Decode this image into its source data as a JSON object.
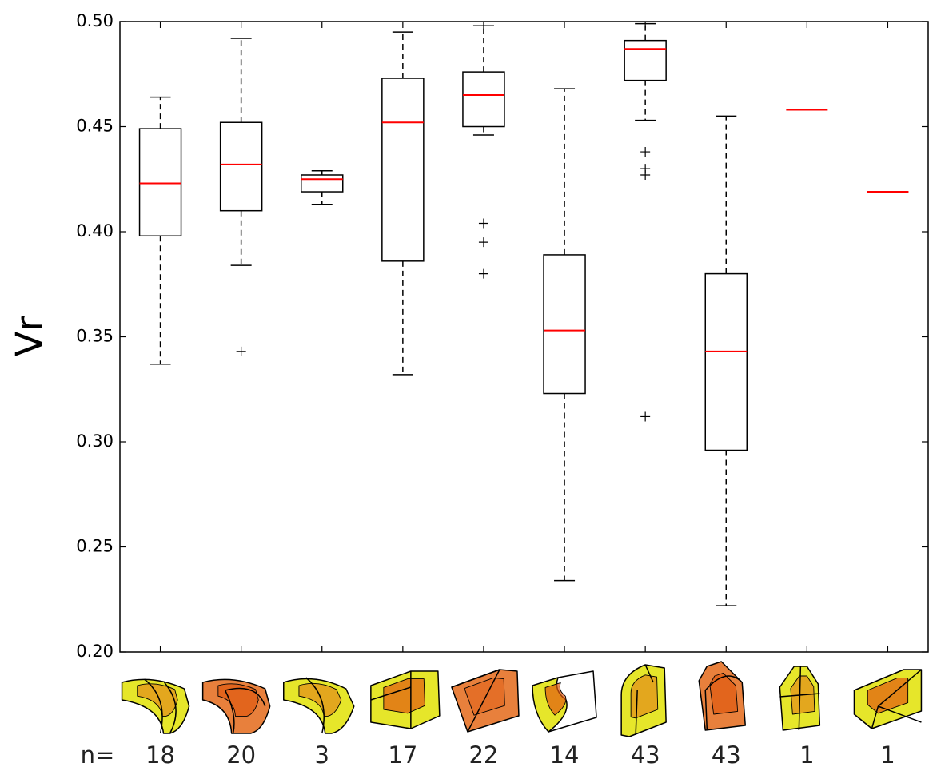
{
  "chart_data": {
    "type": "box",
    "y_label": "Vr",
    "n_prefix": "n=",
    "categories": [
      "18",
      "20",
      "3",
      "17",
      "22",
      "14",
      "43",
      "43",
      "1",
      "1"
    ],
    "ylim": [
      0.2,
      0.5
    ],
    "yticks": [
      {
        "value": 0.2,
        "label": "0.20"
      },
      0.25,
      {
        "value": 0.3,
        "label": "0.30"
      },
      0.35,
      {
        "value": 0.4,
        "label": "0.40"
      },
      0.45,
      {
        "value": 0.5,
        "label": "0.50"
      }
    ],
    "box_color": "#000000",
    "median_color": "#ff0000",
    "boxes": [
      {
        "whislo": 0.337,
        "q1": 0.398,
        "med": 0.423,
        "q3": 0.449,
        "whishi": 0.464,
        "fliers": []
      },
      {
        "whislo": 0.384,
        "q1": 0.41,
        "med": 0.432,
        "q3": 0.452,
        "whishi": 0.492,
        "fliers": [
          0.343
        ]
      },
      {
        "whislo": 0.413,
        "q1": 0.419,
        "med": 0.425,
        "q3": 0.427,
        "whishi": 0.429,
        "fliers": []
      },
      {
        "whislo": 0.332,
        "q1": 0.386,
        "med": 0.452,
        "q3": 0.473,
        "whishi": 0.495,
        "fliers": []
      },
      {
        "whislo": 0.446,
        "q1": 0.45,
        "med": 0.465,
        "q3": 0.476,
        "whishi": 0.498,
        "fliers": [
          0.404,
          0.395,
          0.38
        ]
      },
      {
        "whislo": 0.234,
        "q1": 0.323,
        "med": 0.353,
        "q3": 0.389,
        "whishi": 0.468,
        "fliers": []
      },
      {
        "whislo": 0.453,
        "q1": 0.472,
        "med": 0.487,
        "q3": 0.491,
        "whishi": 0.499,
        "fliers": [
          0.438,
          0.43,
          0.427,
          0.312
        ]
      },
      {
        "whislo": 0.222,
        "q1": 0.296,
        "med": 0.343,
        "q3": 0.38,
        "whishi": 0.455,
        "fliers": []
      },
      {
        "med": 0.458,
        "fliers": []
      },
      {
        "med": 0.419,
        "fliers": []
      }
    ]
  }
}
